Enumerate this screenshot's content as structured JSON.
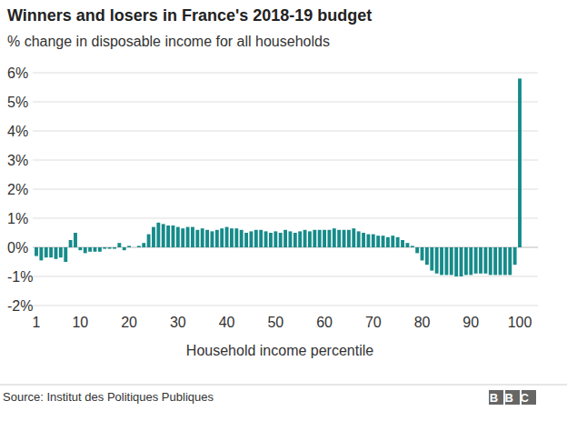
{
  "chart_data": {
    "type": "bar",
    "title": "Winners and losers in France's 2018-19 budget",
    "subtitle": "% change in disposable income for all households",
    "x_label": "Household income percentile",
    "source": "Source: Institut des Politiques Publiques",
    "logo": "BBC",
    "categories": [
      "1",
      null,
      null,
      null,
      null,
      null,
      null,
      null,
      null,
      "10",
      null,
      null,
      null,
      null,
      null,
      null,
      null,
      null,
      null,
      "20",
      null,
      null,
      null,
      null,
      null,
      null,
      null,
      null,
      null,
      "30",
      null,
      null,
      null,
      null,
      null,
      null,
      null,
      null,
      null,
      "40",
      null,
      null,
      null,
      null,
      null,
      null,
      null,
      null,
      null,
      "50",
      null,
      null,
      null,
      null,
      null,
      null,
      null,
      null,
      null,
      "60",
      null,
      null,
      null,
      null,
      null,
      null,
      null,
      null,
      null,
      "70",
      null,
      null,
      null,
      null,
      null,
      null,
      null,
      null,
      null,
      "80",
      null,
      null,
      null,
      null,
      null,
      null,
      null,
      null,
      null,
      "90",
      null,
      null,
      null,
      null,
      null,
      null,
      null,
      null,
      null,
      "100"
    ],
    "values": [
      -0.3,
      -0.45,
      -0.35,
      -0.35,
      -0.4,
      -0.35,
      -0.5,
      0.25,
      0.5,
      -0.1,
      -0.2,
      -0.15,
      -0.15,
      -0.15,
      -0.05,
      -0.05,
      -0.05,
      0.15,
      -0.1,
      0.05,
      0.0,
      0.05,
      0.15,
      0.45,
      0.7,
      0.85,
      0.8,
      0.75,
      0.75,
      0.7,
      0.65,
      0.7,
      0.7,
      0.6,
      0.65,
      0.6,
      0.55,
      0.6,
      0.65,
      0.7,
      0.65,
      0.65,
      0.6,
      0.5,
      0.55,
      0.6,
      0.6,
      0.55,
      0.5,
      0.55,
      0.5,
      0.6,
      0.55,
      0.5,
      0.55,
      0.6,
      0.55,
      0.6,
      0.6,
      0.6,
      0.6,
      0.65,
      0.6,
      0.6,
      0.6,
      0.65,
      0.55,
      0.5,
      0.45,
      0.45,
      0.4,
      0.4,
      0.35,
      0.4,
      0.35,
      0.25,
      0.15,
      0.05,
      -0.2,
      -0.45,
      -0.6,
      -0.8,
      -0.9,
      -0.95,
      -0.95,
      -0.95,
      -1.0,
      -1.0,
      -0.95,
      -0.95,
      -0.9,
      -0.9,
      -0.9,
      -0.95,
      -0.95,
      -0.95,
      -0.95,
      -0.95,
      -0.6,
      5.8
    ],
    "color": "#168b8a",
    "ylim": [
      -2,
      6
    ],
    "yticks": [
      {
        "value": -2,
        "label": "-2%"
      },
      {
        "value": -1,
        "label": "-1%"
      },
      {
        "value": 0,
        "label": "0%"
      },
      {
        "value": 1,
        "label": "1%"
      },
      {
        "value": 2,
        "label": "2%"
      },
      {
        "value": 3,
        "label": "3%"
      },
      {
        "value": 4,
        "label": "4%"
      },
      {
        "value": 5,
        "label": "5%"
      },
      {
        "value": 6,
        "label": "6%"
      }
    ],
    "grid": true
  }
}
